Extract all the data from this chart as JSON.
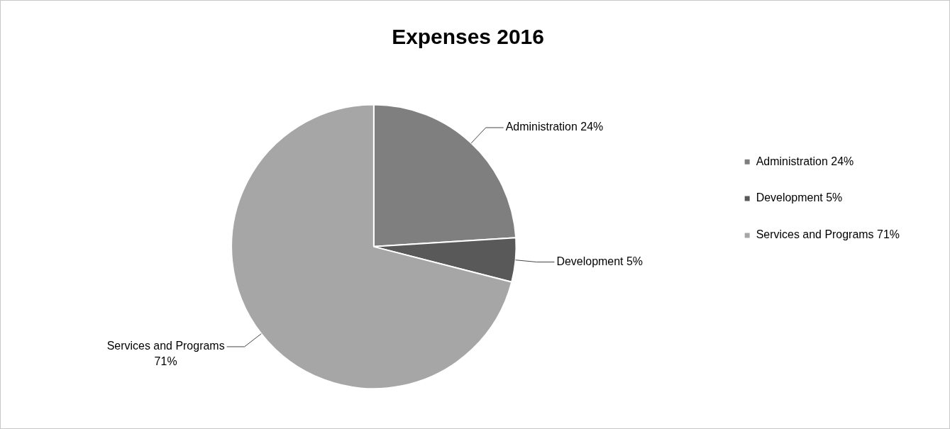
{
  "chart_data": {
    "type": "pie",
    "title": "Expenses 2016",
    "categories": [
      "Administration 24%",
      "Development 5%",
      "Services and Programs 71%"
    ],
    "values": [
      24,
      5,
      71
    ],
    "colors": [
      "#7f7f7f",
      "#595959",
      "#a6a6a6"
    ],
    "value_labels": [
      "Administration 24%",
      "Development 5%",
      "Services and Programs 71%"
    ],
    "legend": "right"
  }
}
